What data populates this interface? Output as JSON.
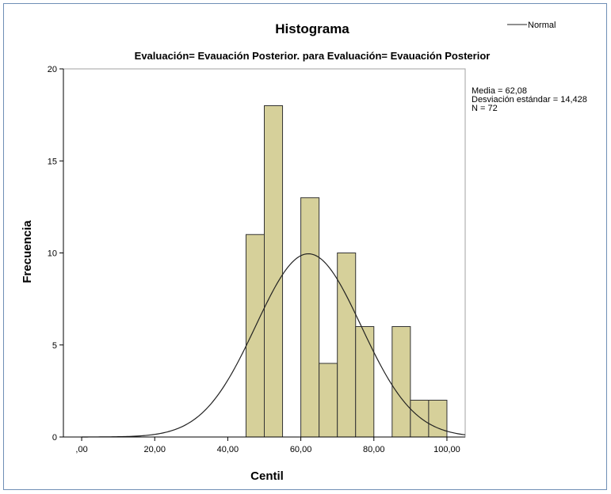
{
  "chart_data": {
    "type": "bar",
    "title": "Histograma",
    "subtitle": "Evaluación= Evauación Posterior. para Evaluación= Evauación Posterior",
    "xlabel": "Centil",
    "ylabel": "Frecuencia",
    "xlim": [
      -5,
      105
    ],
    "ylim": [
      0,
      20
    ],
    "x_ticks": [
      {
        "value": 0,
        "label": ",00"
      },
      {
        "value": 20,
        "label": "20,00"
      },
      {
        "value": 40,
        "label": "40,00"
      },
      {
        "value": 60,
        "label": "60,00"
      },
      {
        "value": 80,
        "label": "80,00"
      },
      {
        "value": 100,
        "label": "100,00"
      }
    ],
    "y_ticks": [
      {
        "value": 0,
        "label": "0"
      },
      {
        "value": 5,
        "label": "5"
      },
      {
        "value": 10,
        "label": "10"
      },
      {
        "value": 15,
        "label": "15"
      },
      {
        "value": 20,
        "label": "20"
      }
    ],
    "bins": [
      {
        "start": 45,
        "end": 50,
        "count": 11
      },
      {
        "start": 50,
        "end": 55,
        "count": 18
      },
      {
        "start": 55,
        "end": 60,
        "count": 0
      },
      {
        "start": 60,
        "end": 65,
        "count": 13
      },
      {
        "start": 65,
        "end": 70,
        "count": 4
      },
      {
        "start": 70,
        "end": 75,
        "count": 10
      },
      {
        "start": 75,
        "end": 80,
        "count": 6
      },
      {
        "start": 80,
        "end": 85,
        "count": 0
      },
      {
        "start": 85,
        "end": 90,
        "count": 6
      },
      {
        "start": 90,
        "end": 95,
        "count": 2
      },
      {
        "start": 95,
        "end": 100,
        "count": 2
      }
    ],
    "normal_curve": {
      "mean": 62.08,
      "sd": 14.428,
      "n": 72,
      "bin_width": 5
    },
    "legend": {
      "entries": [
        "Normal"
      ],
      "position": "top-right"
    },
    "stats": [
      "Media = 62,08",
      "Desviación estándar = 14,428",
      "N = 72"
    ],
    "grid": false,
    "colors": {
      "bar_fill": "#d6d09a",
      "bar_stroke": "#333333",
      "curve": "#222222",
      "axis": "#000000",
      "plot_border": "#999999"
    }
  }
}
